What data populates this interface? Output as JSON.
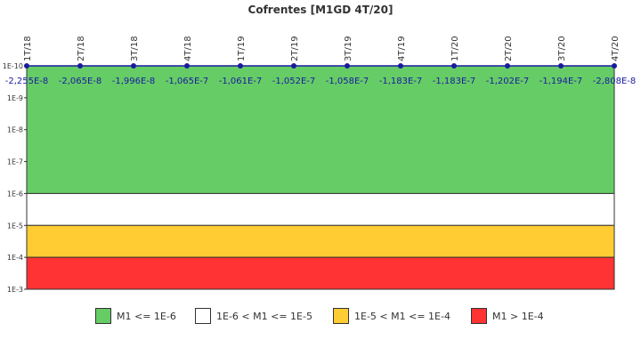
{
  "chart_data": {
    "type": "line",
    "title": "Cofrentes [M1GD 4T/20]",
    "x": [
      "1T/18",
      "2T/18",
      "3T/18",
      "4T/18",
      "1T/19",
      "2T/19",
      "3T/19",
      "4T/19",
      "1T/20",
      "2T/20",
      "3T/20",
      "4T/20"
    ],
    "series": [
      {
        "values": [
          -2.255e-08,
          -2.065e-08,
          -1.996e-08,
          -1.065e-07,
          -1.061e-07,
          -1.052e-07,
          -1.058e-07,
          -1.183e-07,
          -1.183e-07,
          -1.202e-07,
          -1.194e-07,
          -2.808e-08
        ],
        "labels": [
          "-2,255E-8",
          "-2,065E-8",
          "-1,996E-8",
          "-1,065E-7",
          "-1,061E-7",
          "-1,052E-7",
          "-1,058E-7",
          "-1,183E-7",
          "-1,183E-7",
          "-1,202E-7",
          "-1,194E-7",
          "-2,808E-8"
        ],
        "color": "#1a1aa0"
      }
    ],
    "y_scale": "log",
    "y_inverted": true,
    "ylim": [
      1e-10,
      0.001
    ],
    "y_ticks": [
      "1E-10",
      "1E-9",
      "1E-8",
      "1E-7",
      "1E-6",
      "1E-5",
      "1E-4",
      "1E-3"
    ],
    "bands": [
      {
        "from": 1e-10,
        "to": 1e-06,
        "color": "#66cc66"
      },
      {
        "from": 1e-06,
        "to": 1e-05,
        "color": "#ffffff"
      },
      {
        "from": 1e-05,
        "to": 0.0001,
        "color": "#ffcc33"
      },
      {
        "from": 0.0001,
        "to": 0.001,
        "color": "#ff3333"
      }
    ],
    "legend_position": "bottom",
    "legend": [
      {
        "label": "M1 <= 1E-6",
        "color": "#66cc66"
      },
      {
        "label": "1E-6 < M1 <= 1E-5",
        "color": "#ffffff"
      },
      {
        "label": "1E-5 < M1 <= 1E-4",
        "color": "#ffcc33"
      },
      {
        "label": "M1 > 1E-4",
        "color": "#ff3333"
      }
    ]
  }
}
